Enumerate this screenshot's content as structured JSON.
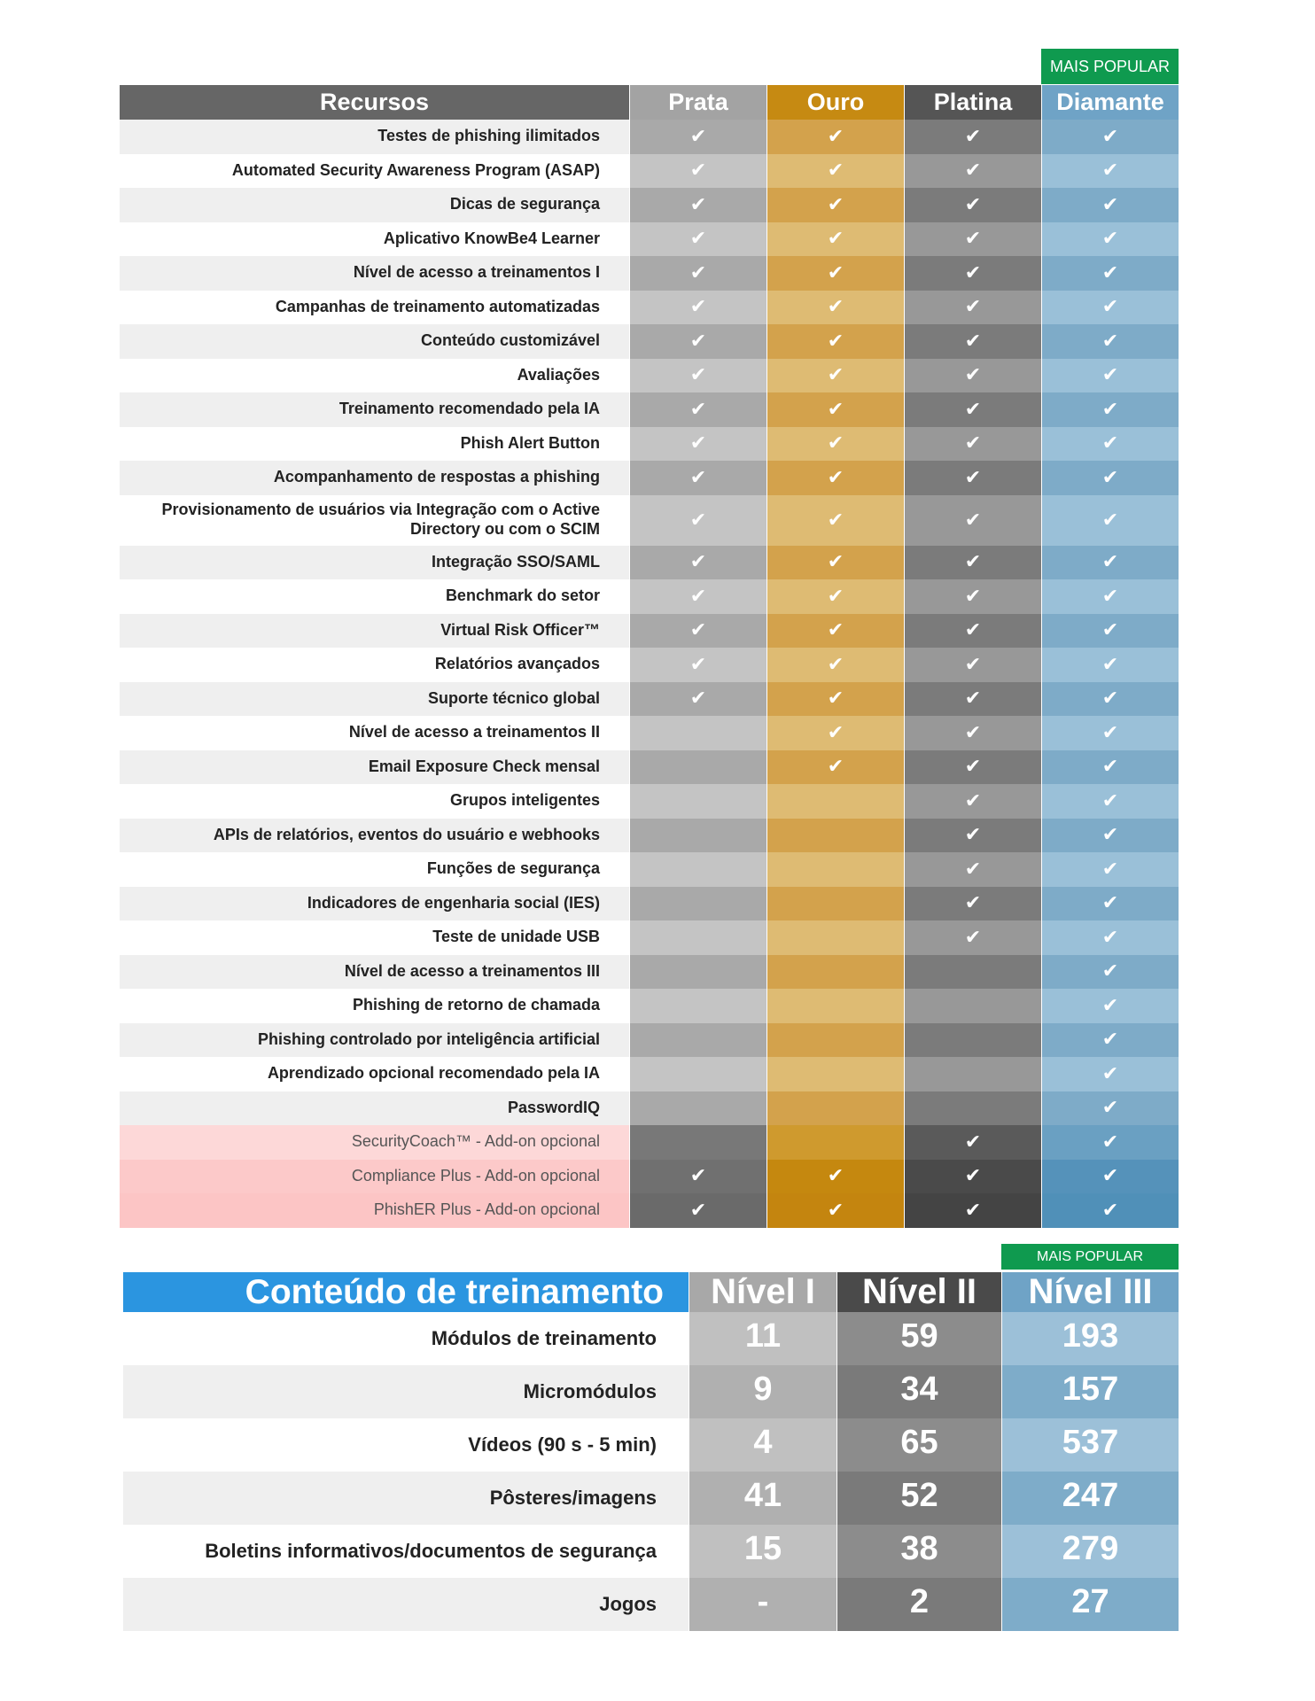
{
  "features_table": {
    "badge": "MAIS POPULAR",
    "header": [
      "Recursos",
      "Prata",
      "Ouro",
      "Platina",
      "Diamante"
    ],
    "rows": [
      {
        "feature": "Testes de phishing ilimitados",
        "checks": [
          "✔",
          "✔",
          "✔",
          "✔"
        ]
      },
      {
        "feature": "Automated Security Awareness Program (ASAP)",
        "checks": [
          "✔",
          "✔",
          "✔",
          "✔"
        ]
      },
      {
        "feature": "Dicas de segurança",
        "checks": [
          "✔",
          "✔",
          "✔",
          "✔"
        ]
      },
      {
        "feature": "Aplicativo KnowBe4 Learner",
        "checks": [
          "✔",
          "✔",
          "✔",
          "✔"
        ]
      },
      {
        "feature": "Nível de acesso a treinamentos I",
        "checks": [
          "✔",
          "✔",
          "✔",
          "✔"
        ]
      },
      {
        "feature": "Campanhas de treinamento automatizadas",
        "checks": [
          "✔",
          "✔",
          "✔",
          "✔"
        ]
      },
      {
        "feature": "Conteúdo customizável",
        "checks": [
          "✔",
          "✔",
          "✔",
          "✔"
        ]
      },
      {
        "feature": "Avaliações",
        "checks": [
          "✔",
          "✔",
          "✔",
          "✔"
        ]
      },
      {
        "feature": "Treinamento recomendado pela IA",
        "checks": [
          "✔",
          "✔",
          "✔",
          "✔"
        ]
      },
      {
        "feature": "Phish Alert Button",
        "checks": [
          "✔",
          "✔",
          "✔",
          "✔"
        ]
      },
      {
        "feature": "Acompanhamento de respostas a phishing",
        "checks": [
          "✔",
          "✔",
          "✔",
          "✔"
        ]
      },
      {
        "feature": "Provisionamento de usuários via Integração com o Active Directory ou com o SCIM",
        "checks": [
          "✔",
          "✔",
          "✔",
          "✔"
        ]
      },
      {
        "feature": "Integração SSO/SAML",
        "checks": [
          "✔",
          "✔",
          "✔",
          "✔"
        ]
      },
      {
        "feature": "Benchmark do setor",
        "checks": [
          "✔",
          "✔",
          "✔",
          "✔"
        ]
      },
      {
        "feature": "Virtual Risk Officer™",
        "checks": [
          "✔",
          "✔",
          "✔",
          "✔"
        ]
      },
      {
        "feature": "Relatórios avançados",
        "checks": [
          "✔",
          "✔",
          "✔",
          "✔"
        ]
      },
      {
        "feature": "Suporte técnico global",
        "checks": [
          "✔",
          "✔",
          "✔",
          "✔"
        ]
      },
      {
        "feature": "Nível de acesso a treinamentos II",
        "checks": [
          null,
          "✔",
          "✔",
          "✔"
        ]
      },
      {
        "feature": "Email Exposure Check mensal",
        "checks": [
          null,
          "✔",
          "✔",
          "✔"
        ]
      },
      {
        "feature": "Grupos inteligentes",
        "checks": [
          null,
          null,
          "✔",
          "✔"
        ]
      },
      {
        "feature": "APIs de relatórios, eventos do usuário e webhooks",
        "checks": [
          null,
          null,
          "✔",
          "✔"
        ]
      },
      {
        "feature": "Funções de segurança",
        "checks": [
          null,
          null,
          "✔",
          "✔"
        ]
      },
      {
        "feature": "Indicadores de engenharia social (IES)",
        "checks": [
          null,
          null,
          "✔",
          "✔"
        ]
      },
      {
        "feature": "Teste de unidade USB",
        "checks": [
          null,
          null,
          "✔",
          "✔"
        ]
      },
      {
        "feature": "Nível de acesso a treinamentos III",
        "checks": [
          null,
          null,
          null,
          "✔"
        ]
      },
      {
        "feature": "Phishing de retorno de chamada",
        "checks": [
          null,
          null,
          null,
          "✔"
        ]
      },
      {
        "feature": "Phishing controlado por inteligência artificial",
        "checks": [
          null,
          null,
          null,
          "✔"
        ]
      },
      {
        "feature": "Aprendizado opcional recomendado pela IA",
        "checks": [
          null,
          null,
          null,
          "✔"
        ]
      },
      {
        "feature": "PasswordIQ",
        "checks": [
          null,
          null,
          null,
          "✔"
        ]
      },
      {
        "feature": "SecurityCoach™ - Add-on opcional",
        "checks": [
          null,
          null,
          "✔",
          "✔"
        ]
      },
      {
        "feature": "Compliance Plus - Add-on opcional",
        "checks": [
          "✔",
          "✔",
          "✔",
          "✔"
        ]
      },
      {
        "feature": "PhishER Plus - Add-on opcional",
        "checks": [
          "✔",
          "✔",
          "✔",
          "✔"
        ]
      }
    ]
  },
  "content_table": {
    "badge": "MAIS POPULAR",
    "header": [
      "Conteúdo de treinamento",
      "Nível I",
      "Nível II",
      "Nível III"
    ],
    "rows": [
      {
        "label": "Módulos de treinamento",
        "values": [
          11,
          59,
          193
        ]
      },
      {
        "label": "Micromódulos",
        "values": [
          9,
          34,
          157
        ]
      },
      {
        "label": "Vídeos (90 s - 5 min)",
        "values": [
          4,
          65,
          537
        ]
      },
      {
        "label": "Pôsteres/imagens",
        "values": [
          41,
          52,
          247
        ]
      },
      {
        "label": "Boletins informativos/documentos de segurança",
        "values": [
          15,
          38,
          279
        ]
      },
      {
        "label": "Jogos",
        "values": [
          "-",
          2,
          27
        ]
      }
    ]
  }
}
